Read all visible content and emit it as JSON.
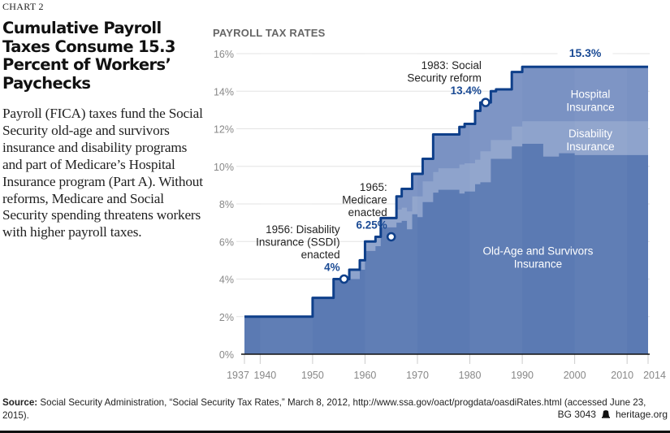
{
  "header": {
    "chart_label": "CHART 2",
    "title": "Cumulative Payroll Taxes Consume 15.3 Percent of Workers’ Paychecks",
    "description": "Payroll (FICA) taxes fund the Social Security old-age and survivors insurance and disability programs and part of  Medicare’s Hospital Insurance program (Part A). Without reforms, Medicare and Social Security spending threatens workers with higher payroll taxes."
  },
  "footer": {
    "source_label": "Source:",
    "source_text": " Social Security Administration, “Social Security Tax Rates,” March 8, 2012, http://www.ssa.gov/oact/progdata/oasdiRates.html (accessed June 23, 2015).",
    "report_id": "BG 3043",
    "logo_icon": "liberty-bell-icon",
    "site": "heritage.org"
  },
  "colors": {
    "oasi": "#5b7ab3",
    "di": "#8ea3cc",
    "hi": "#7a92c3",
    "line": "#0e3f8a",
    "accent_text": "#1a4a94",
    "grid": "#e3e3e3"
  },
  "chart_data": {
    "type": "area",
    "title": "PAYROLL TAX RATES",
    "xlabel": "",
    "ylabel": "",
    "xlim": [
      1937,
      2014
    ],
    "ylim": [
      0,
      16
    ],
    "grid": true,
    "x_ticks": [
      1937,
      1940,
      1950,
      1960,
      1970,
      1980,
      1990,
      2000,
      2010,
      2014
    ],
    "y_ticks": [
      0,
      2,
      4,
      6,
      8,
      10,
      12,
      14,
      16
    ],
    "y_tick_labels": [
      "0%",
      "2%",
      "4%",
      "6%",
      "8%",
      "10%",
      "12%",
      "14%",
      "16%"
    ],
    "years": [
      1937,
      1950,
      1954,
      1957,
      1959,
      1960,
      1962,
      1963,
      1966,
      1967,
      1968,
      1969,
      1970,
      1971,
      1973,
      1974,
      1978,
      1979,
      1981,
      1982,
      1984,
      1985,
      1988,
      1990,
      1994,
      1997,
      2000,
      2014
    ],
    "series": [
      {
        "name": "Old-Age and Survivors Insurance",
        "values": [
          2.0,
          3.0,
          4.0,
          4.0,
          4.5,
          5.5,
          5.75,
          6.75,
          7.0,
          7.1,
          6.65,
          7.45,
          7.3,
          8.1,
          8.6,
          8.75,
          8.55,
          8.66,
          9.05,
          9.15,
          10.4,
          10.4,
          11.06,
          11.2,
          10.52,
          10.7,
          10.6,
          10.6
        ]
      },
      {
        "name": "Disability Insurance",
        "values": [
          0,
          0,
          0,
          0.5,
          0.5,
          0.5,
          0.5,
          0.5,
          0.7,
          0.7,
          0.95,
          0.95,
          1.1,
          1.1,
          1.1,
          1.15,
          1.55,
          1.5,
          1.3,
          1.65,
          1.0,
          1.0,
          1.06,
          1.2,
          1.88,
          1.7,
          1.8,
          1.8
        ]
      },
      {
        "name": "Hospital Insurance",
        "values": [
          0,
          0,
          0,
          0,
          0,
          0,
          0,
          0,
          0.7,
          1.0,
          1.2,
          1.2,
          1.2,
          1.2,
          2.0,
          1.8,
          2.0,
          2.1,
          2.6,
          2.6,
          2.6,
          2.7,
          2.9,
          2.9,
          2.9,
          2.9,
          2.9,
          2.9
        ]
      }
    ],
    "area_labels": [
      {
        "series": "Hospital Insurance",
        "text_lines": [
          "Hospital",
          "Insurance"
        ],
        "x": 2003,
        "y": 13.65
      },
      {
        "series": "Disability Insurance",
        "text_lines": [
          "Disability",
          "Insurance"
        ],
        "x": 2003,
        "y": 11.55
      },
      {
        "series": "Old-Age and Survivors Insurance",
        "text_lines": [
          "Old-Age and Survivors",
          "Insurance"
        ],
        "x": 1993,
        "y": 5.3
      }
    ],
    "annotations": [
      {
        "year": 1956,
        "value": 4.0,
        "lines": [
          "1956: Disability",
          "Insurance (SSDI)",
          "enacted"
        ],
        "value_label": "4%",
        "marker": true
      },
      {
        "year": 1965,
        "value": 6.25,
        "lines": [
          "1965:",
          "Medicare",
          "enacted"
        ],
        "value_label": "6.25%",
        "marker": true
      },
      {
        "year": 1983,
        "value": 13.4,
        "lines": [
          "1983: Social",
          "Security reform"
        ],
        "value_label": "13.4%",
        "marker": true
      },
      {
        "year": 2002,
        "value": 15.3,
        "lines": [],
        "value_label": "15.3%",
        "marker": false
      }
    ]
  }
}
